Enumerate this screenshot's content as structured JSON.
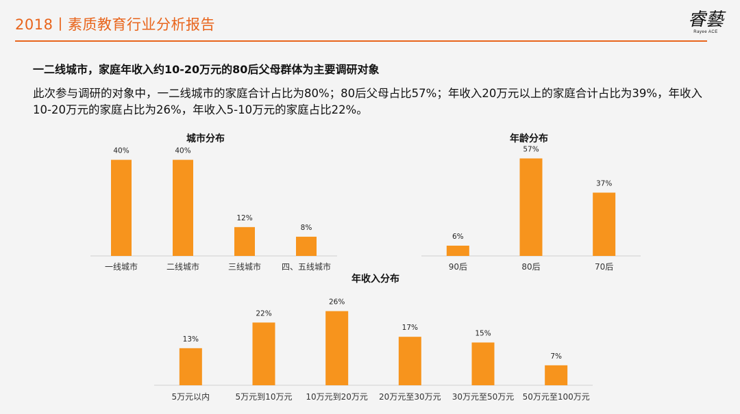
{
  "header": {
    "title": "2018丨素质教育行业分析报告"
  },
  "logo": {
    "mark": "睿藝",
    "sub": "Rayee ACE"
  },
  "headline": "一二线城市，家庭年收入约10-20万元的80后父母群体为主要调研对象",
  "body_text": "此次参与调研的对象中，一二线城市的家庭合计占比为80%；80后父母占比57%；年收入20万元以上的家庭合计占比为39%，年收入10-20万元的家庭占比为26%，年收入5-10万元的家庭占比22%。",
  "colors": {
    "accent": "#e8641b",
    "bar": "#f7941d",
    "axis": "#d0d0d0"
  },
  "chart_data": [
    {
      "type": "bar",
      "title": "城市分布",
      "categories": [
        "一线城市",
        "二线城市",
        "三线城市",
        "四、五线城市"
      ],
      "values": [
        40,
        40,
        12,
        8
      ],
      "labels": [
        "40%",
        "40%",
        "12%",
        "8%"
      ],
      "unit": "%",
      "ylim": [
        0,
        45
      ],
      "grid": false,
      "legend": "none"
    },
    {
      "type": "bar",
      "title": "年龄分布",
      "categories": [
        "90后",
        "80后",
        "70后"
      ],
      "values": [
        6,
        57,
        37
      ],
      "labels": [
        "6%",
        "57%",
        "37%"
      ],
      "unit": "%",
      "ylim": [
        0,
        60
      ],
      "grid": false,
      "legend": "none"
    },
    {
      "type": "bar",
      "title": "年收入分布",
      "categories": [
        "5万元以内",
        "5万元到10万元",
        "10万元到20万元",
        "20万元至30万元",
        "30万元至50万元",
        "50万元至100万元"
      ],
      "values": [
        13,
        22,
        26,
        17,
        15,
        7
      ],
      "labels": [
        "13%",
        "22%",
        "26%",
        "17%",
        "15%",
        "7%"
      ],
      "unit": "%",
      "ylim": [
        0,
        30
      ],
      "grid": false,
      "legend": "none"
    }
  ]
}
